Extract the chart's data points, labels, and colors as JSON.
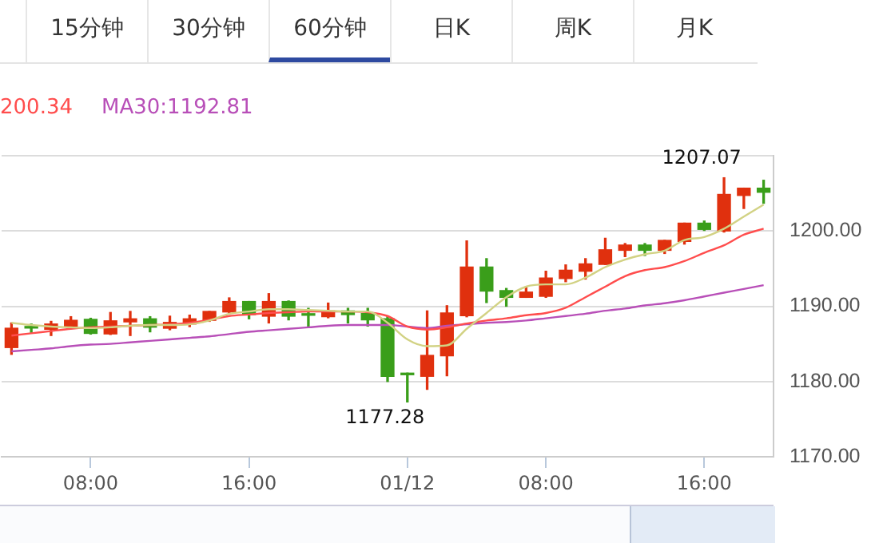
{
  "chart_data": {
    "type": "candlestick",
    "annotations": [
      "15分钟",
      "30分钟",
      "60分钟",
      "日K",
      "周K",
      "月K",
      "1207.07",
      "1177.28"
    ],
    "categories": [
      null,
      null,
      null,
      null,
      "08:00",
      null,
      null,
      null,
      null,
      null,
      null,
      null,
      "16:00",
      null,
      null,
      null,
      null,
      null,
      null,
      null,
      "01/12",
      null,
      null,
      null,
      null,
      null,
      null,
      "08:00",
      null,
      null,
      null,
      null,
      null,
      null,
      null,
      "16:00",
      null,
      null,
      null
    ],
    "ohlc": [
      [
        1184.51,
        1187.78,
        1183.61,
        1187.08
      ],
      [
        1187.15,
        1187.64,
        1186.53,
        1187.1
      ],
      [
        1186.94,
        1187.99,
        1186.11,
        1187.64
      ],
      [
        1187.29,
        1188.61,
        1187.08,
        1188.13
      ],
      [
        1188.26,
        1188.4,
        1186.3,
        1186.39
      ],
      [
        1186.32,
        1189.17,
        1186.25,
        1188.06
      ],
      [
        1187.92,
        1189.31,
        1186.11,
        1188.33
      ],
      [
        1188.33,
        1188.61,
        1186.6,
        1187.22
      ],
      [
        1187.08,
        1188.68,
        1186.88,
        1187.85
      ],
      [
        1187.64,
        1188.82,
        1187.29,
        1188.33
      ],
      [
        1188.13,
        1189.31,
        1187.99,
        1189.31
      ],
      [
        1189.24,
        1191.11,
        1189.03,
        1190.63
      ],
      [
        1190.63,
        1190.63,
        1188.33,
        1188.89
      ],
      [
        1188.68,
        1191.67,
        1187.78,
        1190.63
      ],
      [
        1190.63,
        1190.7,
        1188.19,
        1188.68
      ],
      [
        1188.9,
        1189.72,
        1187.29,
        1188.8
      ],
      [
        1188.61,
        1190.42,
        1188.47,
        1189.38
      ],
      [
        1189.38,
        1189.72,
        1187.78,
        1188.89
      ],
      [
        1189.03,
        1189.72,
        1187.36,
        1188.19
      ],
      [
        1188.33,
        1188.68,
        1180.0,
        1180.69
      ],
      [
        1180.97,
        1181.11,
        1177.28,
        1180.9
      ],
      [
        1180.69,
        1189.38,
        1178.96,
        1183.47
      ],
      [
        1183.4,
        1190.07,
        1180.76,
        1189.1
      ],
      [
        1188.75,
        1198.68,
        1188.6,
        1195.21
      ],
      [
        1195.21,
        1196.32,
        1190.49,
        1192.01
      ],
      [
        1192.08,
        1192.36,
        1190.0,
        1191.18
      ],
      [
        1191.18,
        1192.57,
        1191.18,
        1191.88
      ],
      [
        1191.32,
        1194.65,
        1191.18,
        1193.75
      ],
      [
        1193.68,
        1195.49,
        1193.26,
        1194.79
      ],
      [
        1194.65,
        1196.32,
        1193.61,
        1195.63
      ],
      [
        1195.56,
        1199.03,
        1195.56,
        1197.5
      ],
      [
        1197.43,
        1198.33,
        1196.6,
        1198.13
      ],
      [
        1198.13,
        1198.33,
        1196.74,
        1197.43
      ],
      [
        1197.43,
        1198.75,
        1197.01,
        1198.75
      ],
      [
        1198.61,
        1201.04,
        1198.26,
        1201.04
      ],
      [
        1201.04,
        1201.32,
        1200.07,
        1200.21
      ],
      [
        1200.0,
        1207.07,
        1199.86,
        1204.86
      ],
      [
        1204.72,
        1205.69,
        1202.99,
        1205.69
      ],
      [
        1205.69,
        1206.74,
        1203.68,
        1205.14
      ]
    ],
    "colors": [
      "#e0300e",
      "#3a9e1a",
      "#e0300e",
      "#e0300e",
      "#3a9e1a",
      "#e0300e",
      "#e0300e",
      "#3a9e1a",
      "#e0300e",
      "#e0300e",
      "#e0300e",
      "#e0300e",
      "#3a9e1a",
      "#e0300e",
      "#3a9e1a",
      "#3a9e1a",
      "#e0300e",
      "#3a9e1a",
      "#3a9e1a",
      "#3a9e1a",
      "#3a9e1a",
      "#e0300e",
      "#e0300e",
      "#e0300e",
      "#3a9e1a",
      "#3a9e1a",
      "#e0300e",
      "#e0300e",
      "#e0300e",
      "#e0300e",
      "#e0300e",
      "#e0300e",
      "#3a9e1a",
      "#e0300e",
      "#e0300e",
      "#3a9e1a",
      "#e0300e",
      "#e0300e",
      "#3a9e1a"
    ],
    "series": [
      {
        "type": "line",
        "color": "#d2d284",
        "values": [
          1187.8,
          1187.5,
          1187.3,
          1187.2,
          1187.1,
          1187.2,
          1187.4,
          1187.5,
          1187.5,
          1187.6,
          1188.1,
          1189.0,
          1189.3,
          1189.6,
          1189.6,
          1189.5,
          1189.4,
          1189.3,
          1189.3,
          1187.8,
          1185.6,
          1184.7,
          1184.8,
          1187.0,
          1189.1,
          1191.2,
          1192.6,
          1192.9,
          1192.9,
          1193.8,
          1195.2,
          1196.2,
          1196.9,
          1197.4,
          1198.8,
          1199.2,
          1200.3,
          1201.9,
          1203.5
        ]
      },
      {
        "type": "line",
        "name": "200.34",
        "color": "#ff4d4d",
        "values": [
          1186.1,
          1186.4,
          1186.7,
          1187.0,
          1187.2,
          1187.3,
          1187.4,
          1187.5,
          1187.6,
          1187.8,
          1188.2,
          1188.7,
          1188.9,
          1189.1,
          1189.2,
          1189.3,
          1189.3,
          1189.3,
          1189.2,
          1188.7,
          1187.3,
          1186.9,
          1187.2,
          1187.7,
          1188.1,
          1188.4,
          1188.8,
          1189.1,
          1189.8,
          1191.2,
          1192.6,
          1194.0,
          1194.8,
          1195.2,
          1196.0,
          1197.1,
          1198.1,
          1199.5,
          1200.3
        ]
      },
      {
        "type": "line",
        "name": "MA30:1192.81",
        "color": "#b84fb8",
        "values": [
          1184.0,
          1184.2,
          1184.4,
          1184.7,
          1184.9,
          1185.0,
          1185.2,
          1185.4,
          1185.6,
          1185.8,
          1186.0,
          1186.3,
          1186.6,
          1186.8,
          1187.0,
          1187.2,
          1187.4,
          1187.5,
          1187.5,
          1187.5,
          1187.3,
          1187.1,
          1187.4,
          1187.6,
          1187.8,
          1187.9,
          1188.1,
          1188.4,
          1188.7,
          1189.0,
          1189.4,
          1189.7,
          1190.1,
          1190.4,
          1190.8,
          1191.3,
          1191.8,
          1192.3,
          1192.8
        ]
      }
    ],
    "ylim": [
      1170,
      1210
    ],
    "yticks": [
      {
        "value": 1170,
        "label": "1170.00"
      },
      {
        "value": 1180,
        "label": "1180.00"
      },
      {
        "value": 1190,
        "label": "1190.00"
      },
      {
        "value": 1200,
        "label": "1200.00"
      },
      {
        "value": 1210,
        "label": null
      }
    ],
    "grid": "y",
    "legend": "top left",
    "marker": "none"
  }
}
